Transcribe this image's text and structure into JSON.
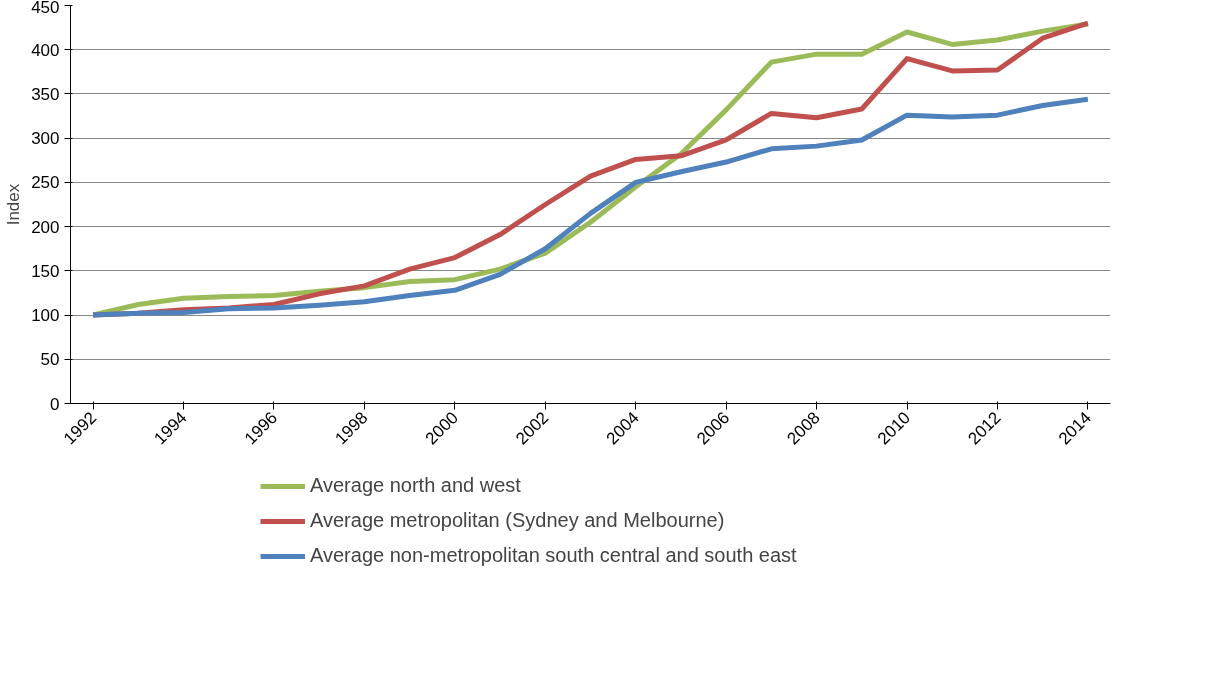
{
  "chart_data": {
    "type": "line",
    "ylabel": "Index",
    "categories": [
      "1992",
      null,
      "1994",
      null,
      "1996",
      null,
      "1998",
      null,
      "2000",
      null,
      "2002",
      null,
      "2004",
      null,
      "2006",
      null,
      "2008",
      null,
      "2010",
      null,
      "2012",
      null,
      "2014"
    ],
    "ylim": [
      0,
      450
    ],
    "yticks": [
      0,
      50,
      100,
      150,
      200,
      250,
      300,
      350,
      400,
      450
    ],
    "grid": "y",
    "legend": "bottom",
    "marker": "none",
    "line_style": "solid",
    "series": [
      {
        "name": "Average north and west",
        "color": "#9bbb59",
        "values": [
          100,
          112,
          119,
          121,
          122,
          127,
          131,
          138,
          140,
          152,
          170,
          205,
          245,
          282,
          332,
          386,
          395,
          395,
          420,
          406,
          411,
          421,
          429
        ]
      },
      {
        "name": "Average metropolitan (Sydney and Melbourne)",
        "color": "#c0504d",
        "values": [
          100,
          102,
          106,
          108,
          112,
          124,
          133,
          152,
          165,
          191,
          225,
          257,
          276,
          280,
          298,
          328,
          323,
          333,
          390,
          376,
          377,
          413,
          430
        ]
      },
      {
        "name": "Average non-metropolitan south central and south east",
        "color": "#4f81bd",
        "values": [
          100,
          102,
          103,
          107,
          108,
          111,
          115,
          122,
          128,
          146,
          175,
          215,
          250,
          262,
          273,
          288,
          291,
          298,
          326,
          324,
          326,
          337,
          344
        ]
      }
    ]
  }
}
